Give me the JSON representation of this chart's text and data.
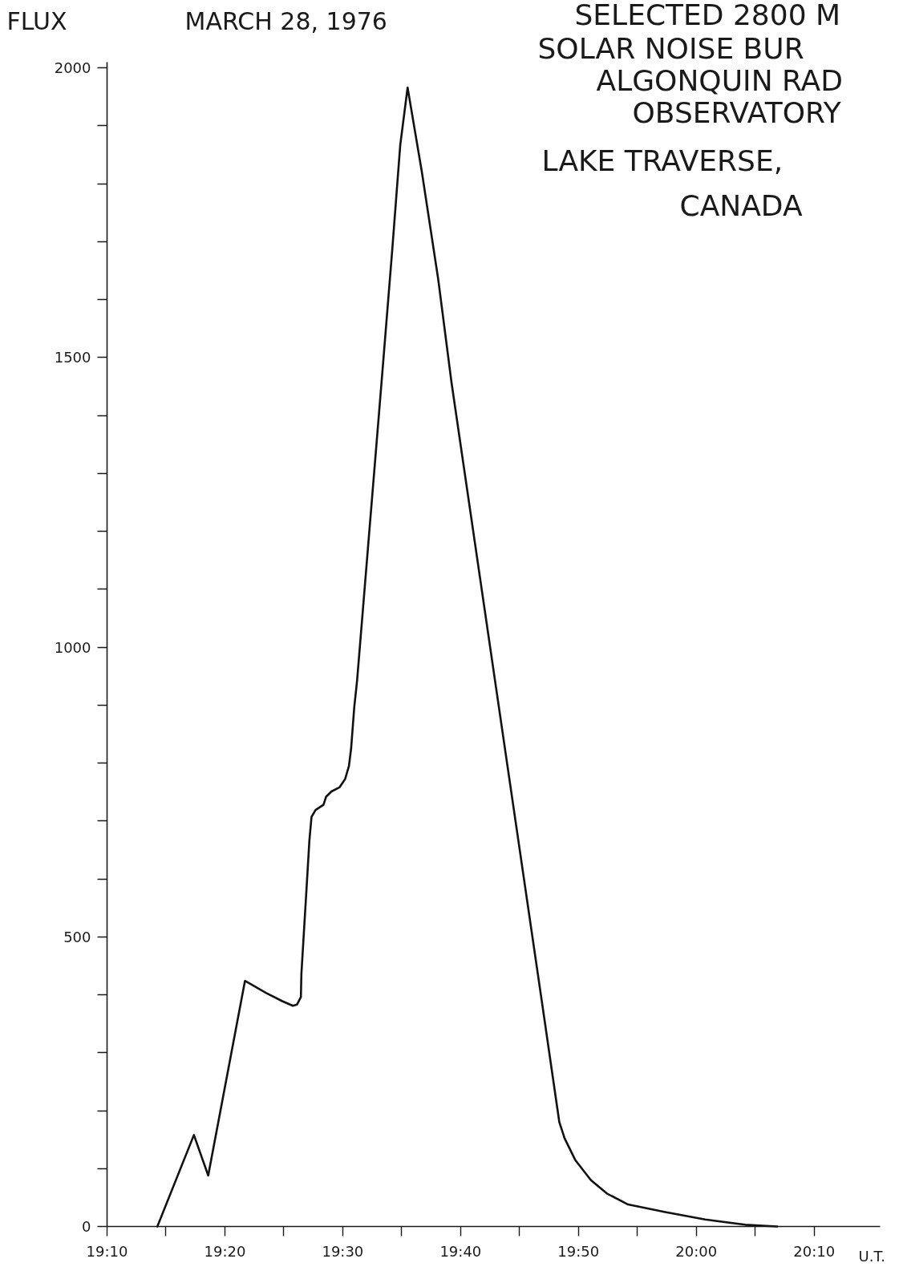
{
  "chart_data": {
    "type": "line",
    "title": "MARCH 28, 1976",
    "ylabel": "FLUX",
    "xlabel": "U.T.",
    "annotations": [
      "SELECTED 2800 M",
      "SOLAR NOISE BUR",
      "ALGONQUIN  RAD",
      "OBSERVATORY",
      "LAKE TRAVERSE,",
      "CANADA"
    ],
    "x": [
      19.2378,
      19.2895,
      19.3097,
      19.3617,
      19.3692,
      19.3918,
      19.4145,
      19.4295,
      19.4352,
      19.4408,
      19.4415,
      19.4483,
      19.4528,
      19.4558,
      19.4615,
      19.4727,
      19.4765,
      19.484,
      19.4953,
      19.5032,
      19.5088,
      19.5118,
      19.5163,
      19.5203,
      19.5547,
      19.5698,
      19.5813,
      19.5917,
      19.6118,
      19.6348,
      19.6538,
      19.7815,
      19.8063,
      19.8138,
      19.8287,
      19.851,
      19.8735,
      19.9035,
      19.956,
      20.0125,
      20.0692,
      20.1145
    ],
    "series": [
      {
        "color": "#111111",
        "values": [
          0,
          158,
          88,
          424,
          419,
          403,
          389,
          381,
          383,
          396,
          436,
          574,
          666,
          707,
          719,
          728,
          742,
          751,
          758,
          772,
          795,
          825,
          897,
          943,
          1455,
          1683,
          1867,
          1966,
          1821,
          1637,
          1457,
          389,
          180,
          152,
          115,
          80,
          57,
          38,
          25,
          12,
          3,
          0
        ]
      }
    ],
    "xlim": [
      19.166667,
      20.26
    ],
    "ylim": [
      0,
      2010
    ],
    "xticks": [
      {
        "value": 19.166667,
        "label": "19:10"
      },
      {
        "value": 19.25,
        "label": null
      },
      {
        "value": 19.333333,
        "label": "19:20"
      },
      {
        "value": 19.416667,
        "label": null
      },
      {
        "value": 19.5,
        "label": "19:30"
      },
      {
        "value": 19.583333,
        "label": null
      },
      {
        "value": 19.666667,
        "label": "19:40"
      },
      {
        "value": 19.75,
        "label": null
      },
      {
        "value": 19.833333,
        "label": "19:50"
      },
      {
        "value": 19.916667,
        "label": null
      },
      {
        "value": 20,
        "label": "20:00"
      },
      {
        "value": 20.083333,
        "label": null
      },
      {
        "value": 20.166667,
        "label": "20:10"
      }
    ],
    "yticks": [
      0,
      {
        "value": 100,
        "label": null
      },
      {
        "value": 200,
        "label": null
      },
      {
        "value": 300,
        "label": null
      },
      {
        "value": 400,
        "label": null
      },
      500,
      {
        "value": 600,
        "label": null
      },
      {
        "value": 700,
        "label": null
      },
      {
        "value": 800,
        "label": null
      },
      {
        "value": 900,
        "label": null
      },
      1000,
      {
        "value": 1100,
        "label": null
      },
      {
        "value": 1200,
        "label": null
      },
      {
        "value": 1300,
        "label": null
      },
      {
        "value": 1400,
        "label": null
      },
      1500,
      {
        "value": 1600,
        "label": null
      },
      {
        "value": 1700,
        "label": null
      },
      {
        "value": 1800,
        "label": null
      },
      {
        "value": 1900,
        "label": null
      },
      2000
    ]
  }
}
